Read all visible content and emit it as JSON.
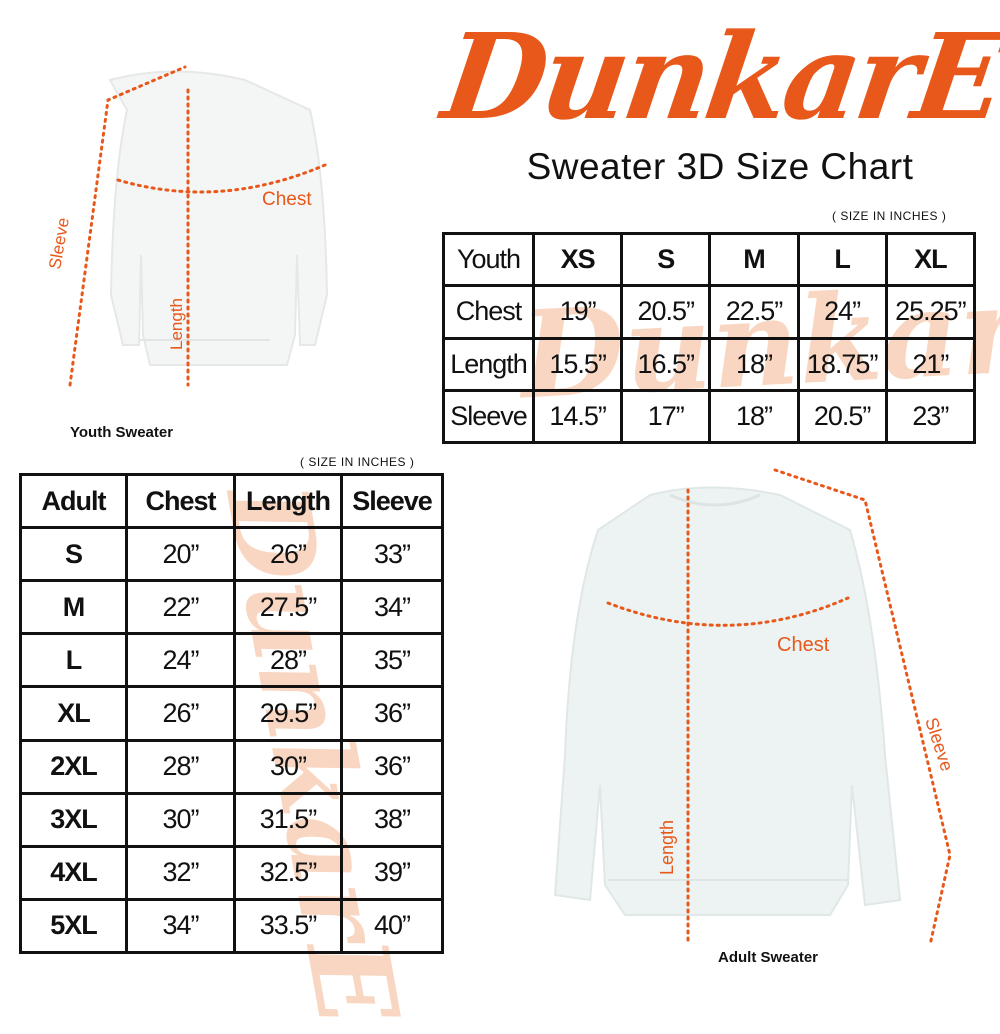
{
  "brand": {
    "logo_text": "DunkarE",
    "color": "#e8581a"
  },
  "title": "Sweater 3D Size Chart",
  "youth": {
    "note": "( SIZE IN INCHES )",
    "caption": "Youth Sweater",
    "labels": {
      "chest": "Chest",
      "length": "Length",
      "sleeve": "Sleeve"
    },
    "headers": [
      "Youth",
      "XS",
      "S",
      "M",
      "L",
      "XL"
    ],
    "rows": [
      [
        "Chest",
        "19”",
        "20.5”",
        "22.5”",
        "24”",
        "25.25”"
      ],
      [
        "Length",
        "15.5”",
        "16.5”",
        "18”",
        "18.75”",
        "21”"
      ],
      [
        "Sleeve",
        "14.5”",
        "17”",
        "18”",
        "20.5”",
        "23”"
      ]
    ]
  },
  "adult": {
    "note": "( SIZE IN INCHES )",
    "caption": "Adult Sweater",
    "labels": {
      "chest": "Chest",
      "length": "Length",
      "sleeve": "Sleeve"
    },
    "headers": [
      "Adult",
      "Chest",
      "Length",
      "Sleeve"
    ],
    "rows": [
      [
        "S",
        "20”",
        "26”",
        "33”"
      ],
      [
        "M",
        "22”",
        "27.5”",
        "34”"
      ],
      [
        "L",
        "24”",
        "28”",
        "35”"
      ],
      [
        "XL",
        "26”",
        "29.5”",
        "36”"
      ],
      [
        "2XL",
        "28”",
        "30”",
        "36”"
      ],
      [
        "3XL",
        "30”",
        "31.5”",
        "38”"
      ],
      [
        "4XL",
        "32”",
        "32.5”",
        "39”"
      ],
      [
        "5XL",
        "34”",
        "33.5”",
        "40”"
      ]
    ]
  }
}
